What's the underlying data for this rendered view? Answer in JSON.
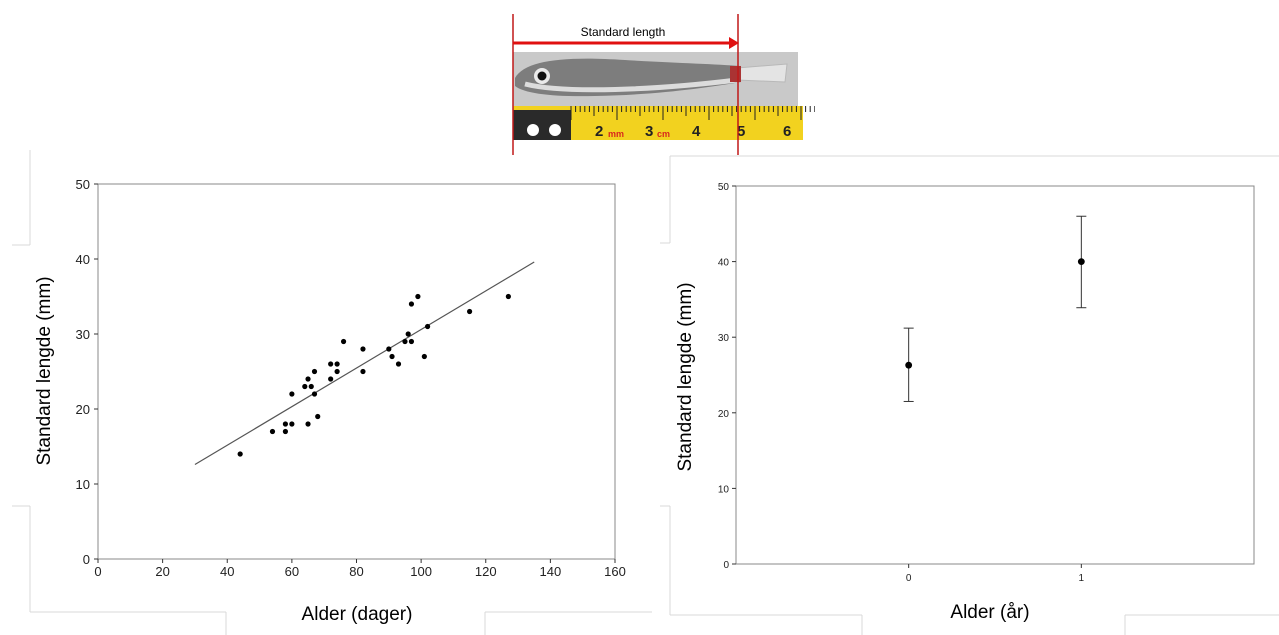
{
  "measurement_figure": {
    "label": "Standard length",
    "ruler_labels": [
      "2",
      "mm",
      "3",
      "cm",
      "4",
      "5",
      "6"
    ],
    "colors": {
      "arrow": "#e01010",
      "ruler": "#f2d21f"
    }
  },
  "chart_data": [
    {
      "type": "scatter",
      "xlabel": "Alder (dager)",
      "ylabel": "Standard lengde (mm)",
      "xlim": [
        0,
        160
      ],
      "ylim": [
        0,
        50
      ],
      "x_ticks": [
        "0",
        "20",
        "40",
        "60",
        "80",
        "100",
        "120",
        "140",
        "160"
      ],
      "y_ticks": [
        "0",
        "10",
        "20",
        "30",
        "40",
        "50"
      ],
      "grid": false,
      "points": [
        {
          "x": 44,
          "y": 14
        },
        {
          "x": 54,
          "y": 17
        },
        {
          "x": 58,
          "y": 17
        },
        {
          "x": 58,
          "y": 18
        },
        {
          "x": 60,
          "y": 18
        },
        {
          "x": 60,
          "y": 22
        },
        {
          "x": 64,
          "y": 23
        },
        {
          "x": 65,
          "y": 18
        },
        {
          "x": 65,
          "y": 24
        },
        {
          "x": 66,
          "y": 23
        },
        {
          "x": 67,
          "y": 22
        },
        {
          "x": 67,
          "y": 25
        },
        {
          "x": 68,
          "y": 19
        },
        {
          "x": 72,
          "y": 24
        },
        {
          "x": 72,
          "y": 26
        },
        {
          "x": 74,
          "y": 25
        },
        {
          "x": 74,
          "y": 26
        },
        {
          "x": 76,
          "y": 29
        },
        {
          "x": 82,
          "y": 25
        },
        {
          "x": 82,
          "y": 28
        },
        {
          "x": 90,
          "y": 28
        },
        {
          "x": 91,
          "y": 27
        },
        {
          "x": 93,
          "y": 26
        },
        {
          "x": 95,
          "y": 29
        },
        {
          "x": 96,
          "y": 30
        },
        {
          "x": 97,
          "y": 29
        },
        {
          "x": 97,
          "y": 34
        },
        {
          "x": 99,
          "y": 35
        },
        {
          "x": 101,
          "y": 27
        },
        {
          "x": 102,
          "y": 31
        },
        {
          "x": 115,
          "y": 33
        },
        {
          "x": 127,
          "y": 35
        }
      ],
      "trendline": {
        "x": [
          30,
          135
        ],
        "y": [
          12.6,
          39.6
        ]
      }
    },
    {
      "type": "scatter",
      "xlabel": "Alder (år)",
      "ylabel": "Standard lengde (mm)",
      "categories": [
        "0",
        "1"
      ],
      "ylim": [
        0,
        50
      ],
      "y_ticks": [
        "0",
        "10",
        "20",
        "30",
        "40",
        "50"
      ],
      "grid": false,
      "points": [
        {
          "x": "0",
          "y": 26.3,
          "err_low": 21.5,
          "err_high": 31.2
        },
        {
          "x": "1",
          "y": 40.0,
          "err_low": 33.9,
          "err_high": 46.0
        }
      ]
    }
  ]
}
